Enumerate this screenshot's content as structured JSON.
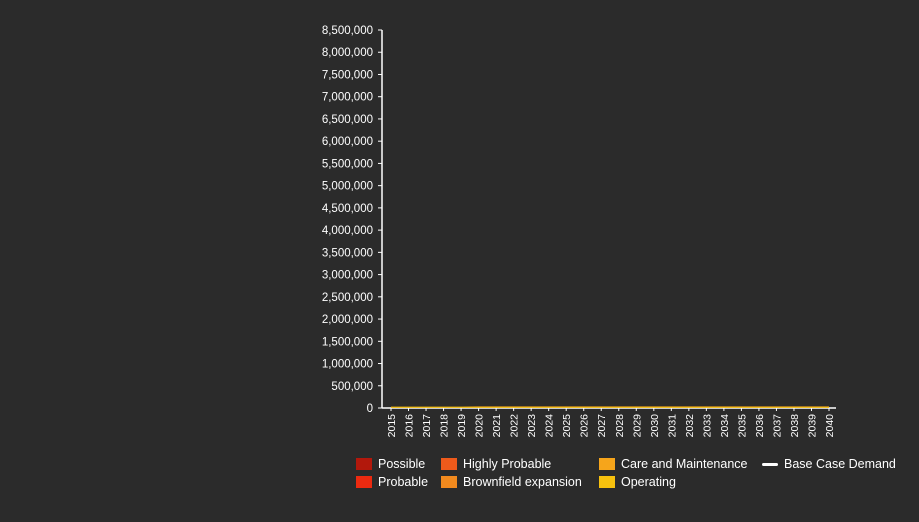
{
  "chart_data": {
    "type": "area",
    "stacked": true,
    "title": "",
    "xlabel": "",
    "ylabel": "",
    "x": [
      "2015",
      "2016",
      "2017",
      "2018",
      "2019",
      "2020",
      "2021",
      "2022",
      "2023",
      "2024",
      "2025",
      "2026",
      "2027",
      "2028",
      "2029",
      "2030",
      "2031",
      "2032",
      "2033",
      "2034",
      "2035",
      "2036",
      "2037",
      "2038",
      "2039",
      "2040"
    ],
    "ylim": [
      0,
      8500000
    ],
    "yticks": [
      0,
      500000,
      1000000,
      1500000,
      2000000,
      2500000,
      3000000,
      3500000,
      4000000,
      4500000,
      5000000,
      5500000,
      6000000,
      6500000,
      7000000,
      7500000,
      8000000,
      8500000
    ],
    "ytick_labels": [
      "0",
      "500,000",
      "1,000,000",
      "1,500,000",
      "2,000,000",
      "2,500,000",
      "3,000,000",
      "3,500,000",
      "4,000,000",
      "4,500,000",
      "5,000,000",
      "5,500,000",
      "6,000,000",
      "6,500,000",
      "7,000,000",
      "7,500,000",
      "8,000,000",
      "8,500,000"
    ],
    "grid": false,
    "legend_position": "bottom",
    "series": [
      {
        "name": "Operating",
        "color": "#f7c10e",
        "values": [
          30000,
          30000,
          30000,
          30000,
          30000,
          30000,
          30000,
          30000,
          30000,
          30000,
          30000,
          30000,
          30000,
          30000,
          30000,
          30000,
          30000,
          30000,
          30000,
          30000,
          30000,
          30000,
          30000,
          30000,
          30000,
          30000
        ]
      },
      {
        "name": "Care and Maintenance",
        "color": "#f6a51b",
        "values": [
          5000,
          5000,
          5000,
          5000,
          5000,
          5000,
          5000,
          5000,
          5000,
          5000,
          5000,
          5000,
          5000,
          5000,
          5000,
          5000,
          5000,
          5000,
          5000,
          5000,
          5000,
          5000,
          5000,
          5000,
          5000,
          5000
        ]
      },
      {
        "name": "Brownfield expansion",
        "color": "#f28a1e",
        "values": [
          0,
          0,
          0,
          0,
          0,
          5000,
          5000,
          5000,
          5000,
          5000,
          5000,
          5000,
          5000,
          5000,
          5000,
          5000,
          5000,
          5000,
          5000,
          5000,
          5000,
          5000,
          5000,
          5000,
          5000,
          5000
        ]
      },
      {
        "name": "Highly Probable",
        "color": "#ee5a1b",
        "values": [
          0,
          0,
          0,
          0,
          0,
          0,
          0,
          0,
          0,
          0,
          0,
          0,
          0,
          0,
          0,
          0,
          0,
          0,
          0,
          0,
          0,
          0,
          0,
          0,
          0,
          0
        ]
      },
      {
        "name": "Probable",
        "color": "#ec2a10",
        "values": [
          0,
          0,
          0,
          0,
          0,
          0,
          0,
          0,
          0,
          0,
          0,
          0,
          0,
          0,
          0,
          0,
          0,
          0,
          0,
          0,
          0,
          0,
          0,
          0,
          0,
          0
        ]
      },
      {
        "name": "Possible",
        "color": "#b2180c",
        "values": [
          0,
          0,
          0,
          0,
          0,
          0,
          0,
          0,
          0,
          0,
          0,
          0,
          0,
          0,
          0,
          0,
          0,
          0,
          0,
          0,
          0,
          0,
          0,
          0,
          0,
          0
        ]
      }
    ],
    "line_series": [
      {
        "name": "Base Case Demand",
        "color": "#ffffff",
        "values": [
          null,
          null,
          null,
          null,
          null,
          null,
          null,
          null,
          null,
          null,
          null,
          null,
          null,
          null,
          null,
          null,
          null,
          null,
          null,
          null,
          null,
          null,
          null,
          null,
          null,
          null
        ]
      }
    ]
  },
  "legend": [
    {
      "label": "Possible",
      "color": "#b2180c",
      "kind": "swatch"
    },
    {
      "label": "Probable",
      "color": "#ec2a10",
      "kind": "swatch"
    },
    {
      "label": "Highly Probable",
      "color": "#ee5a1b",
      "kind": "swatch"
    },
    {
      "label": "Brownfield expansion",
      "color": "#f28a1e",
      "kind": "swatch"
    },
    {
      "label": "Care and Maintenance",
      "color": "#f6a51b",
      "kind": "swatch"
    },
    {
      "label": "Operating",
      "color": "#f7c10e",
      "kind": "swatch"
    },
    {
      "label": "Base Case Demand",
      "color": "#ffffff",
      "kind": "line"
    }
  ]
}
